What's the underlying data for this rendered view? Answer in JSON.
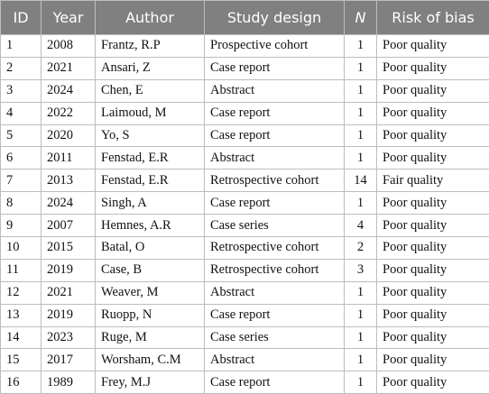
{
  "table": {
    "header": [
      "ID",
      "Year",
      "Author",
      "Study design",
      "N",
      "Risk of bias"
    ],
    "rows": [
      [
        "1",
        "2008",
        "Frantz, R.P",
        "Prospective cohort",
        "1",
        "Poor quality"
      ],
      [
        "2",
        "2021",
        "Ansari, Z",
        "Case report",
        "1",
        "Poor quality"
      ],
      [
        "3",
        "2024",
        "Chen, E",
        "Abstract",
        "1",
        "Poor quality"
      ],
      [
        "4",
        "2022",
        "Laimoud, M",
        "Case report",
        "1",
        "Poor quality"
      ],
      [
        "5",
        "2020",
        "Yo, S",
        "Case report",
        "1",
        "Poor quality"
      ],
      [
        "6",
        "2011",
        "Fenstad, E.R",
        "Abstract",
        "1",
        "Poor quality"
      ],
      [
        "7",
        "2013",
        "Fenstad, E.R",
        "Retrospective cohort",
        "14",
        "Fair quality"
      ],
      [
        "8",
        "2024",
        "Singh, A",
        "Case report",
        "1",
        "Poor quality"
      ],
      [
        "9",
        "2007",
        "Hemnes, A.R",
        "Case series",
        "4",
        "Poor quality"
      ],
      [
        "10",
        "2015",
        "Batal, O",
        "Retrospective cohort",
        "2",
        "Poor quality"
      ],
      [
        "11",
        "2019",
        "Case, B",
        "Retrospective cohort",
        "3",
        "Poor quality"
      ],
      [
        "12",
        "2021",
        "Weaver, M",
        "Abstract",
        "1",
        "Poor quality"
      ],
      [
        "13",
        "2019",
        "Ruopp, N",
        "Case report",
        "1",
        "Poor quality"
      ],
      [
        "14",
        "2023",
        "Ruge, M",
        "Case series",
        "1",
        "Poor quality"
      ],
      [
        "15",
        "2017",
        "Worsham, C.M",
        "Abstract",
        "1",
        "Poor quality"
      ],
      [
        "16",
        "1989",
        "Frey, M.J",
        "Case report",
        "1",
        "Poor quality"
      ]
    ]
  }
}
